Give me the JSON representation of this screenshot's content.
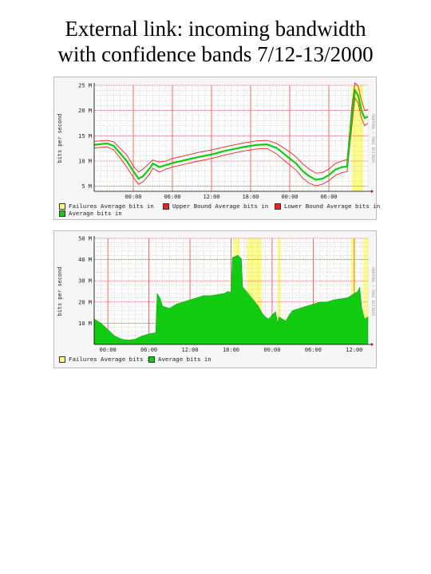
{
  "page": {
    "title_line1": "External link: incoming bandwidth",
    "title_line2": "with confidence bands 7/12-13/2000"
  },
  "colors": {
    "failures": "#ffff88",
    "upper": "#ee2222",
    "lower": "#ee2222",
    "average": "#11cc11",
    "grid_major": "#ff4444",
    "grid_minor": "#c8c8c8"
  },
  "chart_data": [
    {
      "type": "line",
      "ylabel": "bits per second",
      "watermark": "RRDTOOL / TOBI OETIKER",
      "x_ticks": [
        "00:00",
        "06:00",
        "12:00",
        "18:00",
        "00:00",
        "06:00"
      ],
      "y_ticks": [
        "5 M",
        "10 M",
        "15 M",
        "20 M",
        "25 M"
      ],
      "ylim": [
        4,
        25
      ],
      "x_unit": "hours from 18:00 on 7/11",
      "xlim": [
        0,
        42
      ],
      "legend": [
        {
          "label": "Failures Average bits in",
          "color": "#ffff88"
        },
        {
          "label": "Upper Bound Average bits in",
          "color": "#ee2222"
        },
        {
          "label": "Lower Bound Average bits in",
          "color": "#ee2222"
        },
        {
          "label": "Average bits in",
          "color": "#11cc11"
        }
      ],
      "failures": [
        [
          39.5,
          41.3
        ]
      ],
      "series": [
        {
          "name": "Average bits in",
          "points": [
            [
              0,
              13.2
            ],
            [
              2,
              13.5
            ],
            [
              3,
              13.0
            ],
            [
              4,
              11.5
            ],
            [
              5,
              10.0
            ],
            [
              6,
              8.0
            ],
            [
              6.8,
              6.5
            ],
            [
              7.5,
              7.0
            ],
            [
              8.5,
              8.5
            ],
            [
              9,
              9.5
            ],
            [
              10,
              8.8
            ],
            [
              11,
              9.2
            ],
            [
              12,
              9.6
            ],
            [
              14,
              10.2
            ],
            [
              16,
              10.8
            ],
            [
              18,
              11.3
            ],
            [
              20,
              12.0
            ],
            [
              21.5,
              12.4
            ],
            [
              23,
              12.8
            ],
            [
              25,
              13.2
            ],
            [
              26.5,
              13.3
            ],
            [
              28,
              12.6
            ],
            [
              30,
              10.5
            ],
            [
              31,
              9.5
            ],
            [
              32,
              8.0
            ],
            [
              33,
              7.0
            ],
            [
              34,
              6.3
            ],
            [
              35,
              6.5
            ],
            [
              36,
              7.2
            ],
            [
              37,
              8.3
            ],
            [
              38,
              8.8
            ],
            [
              38.8,
              8.9
            ],
            [
              39.1,
              13
            ],
            [
              39.5,
              18.5
            ],
            [
              40,
              24.0
            ],
            [
              40.5,
              23
            ],
            [
              41,
              20.0
            ],
            [
              41.5,
              18.5
            ],
            [
              42,
              18.8
            ]
          ]
        },
        {
          "name": "Upper Bound Average bits in",
          "points": [
            [
              0,
              13.9
            ],
            [
              2,
              14.1
            ],
            [
              3,
              13.8
            ],
            [
              4,
              12.5
            ],
            [
              5,
              11.2
            ],
            [
              6,
              9.0
            ],
            [
              6.8,
              7.8
            ],
            [
              7.5,
              8.4
            ],
            [
              8.5,
              9.6
            ],
            [
              9,
              10.2
            ],
            [
              10,
              9.8
            ],
            [
              11,
              10.0
            ],
            [
              12,
              10.5
            ],
            [
              14,
              11.1
            ],
            [
              16,
              11.7
            ],
            [
              18,
              12.2
            ],
            [
              20,
              12.8
            ],
            [
              21.5,
              13.2
            ],
            [
              23,
              13.6
            ],
            [
              25,
              14.0
            ],
            [
              26.5,
              14.1
            ],
            [
              28,
              13.5
            ],
            [
              30,
              11.8
            ],
            [
              31,
              10.8
            ],
            [
              32,
              9.4
            ],
            [
              33,
              8.4
            ],
            [
              34,
              7.6
            ],
            [
              35,
              7.7
            ],
            [
              36,
              8.4
            ],
            [
              37,
              9.5
            ],
            [
              38,
              10.0
            ],
            [
              38.8,
              10.3
            ],
            [
              39.1,
              14.5
            ],
            [
              39.5,
              20.5
            ],
            [
              40,
              25.5
            ],
            [
              40.5,
              24.8
            ],
            [
              41,
              22.0
            ],
            [
              41.5,
              20.0
            ],
            [
              42,
              20.2
            ]
          ]
        },
        {
          "name": "Lower Bound Average bits in",
          "points": [
            [
              0,
              12.6
            ],
            [
              2,
              12.8
            ],
            [
              3,
              12.2
            ],
            [
              4,
              10.6
            ],
            [
              5,
              8.8
            ],
            [
              6,
              6.8
            ],
            [
              6.8,
              5.4
            ],
            [
              7.5,
              5.9
            ],
            [
              8.5,
              7.4
            ],
            [
              9,
              8.6
            ],
            [
              10,
              7.8
            ],
            [
              11,
              8.4
            ],
            [
              12,
              8.8
            ],
            [
              14,
              9.4
            ],
            [
              16,
              10.0
            ],
            [
              18,
              10.5
            ],
            [
              20,
              11.2
            ],
            [
              21.5,
              11.6
            ],
            [
              23,
              12.0
            ],
            [
              25,
              12.4
            ],
            [
              26.5,
              12.5
            ],
            [
              28,
              11.4
            ],
            [
              30,
              9.2
            ],
            [
              31,
              8.2
            ],
            [
              32,
              6.6
            ],
            [
              33,
              5.6
            ],
            [
              34,
              5.1
            ],
            [
              35,
              5.4
            ],
            [
              36,
              6.1
            ],
            [
              37,
              7.2
            ],
            [
              38,
              7.7
            ],
            [
              38.8,
              7.9
            ],
            [
              39.1,
              11.5
            ],
            [
              39.5,
              16.5
            ],
            [
              40,
              22.5
            ],
            [
              40.5,
              21.5
            ],
            [
              41,
              18.5
            ],
            [
              41.5,
              17.0
            ],
            [
              42,
              17.5
            ]
          ]
        }
      ]
    },
    {
      "type": "area",
      "ylabel": "bits per second",
      "watermark": "RRDTOOL / TOBI OETIKER",
      "x_ticks": [
        "00:00",
        "06:00",
        "12:00",
        "18:00",
        "00:00",
        "06:00",
        "12:00"
      ],
      "y_ticks": [
        "10 M",
        "20 M",
        "30 M",
        "40 M",
        "50 M"
      ],
      "ylim": [
        0,
        50
      ],
      "x_unit": "hours from 22:00 on 7/11",
      "xlim": [
        0,
        40
      ],
      "legend": [
        {
          "label": "Failures Average bits in",
          "color": "#ffff88"
        },
        {
          "label": "Average bits in",
          "color": "#11cc11"
        }
      ],
      "failures": [
        [
          20.3,
          21.3
        ],
        [
          22.3,
          24.5
        ],
        [
          26.8,
          27.3
        ],
        [
          37.5,
          38.2
        ],
        [
          39.3,
          40.0
        ]
      ],
      "series": [
        {
          "name": "Average bits in",
          "points": [
            [
              0,
              12
            ],
            [
              0.5,
              11
            ],
            [
              1,
              10
            ],
            [
              2,
              7
            ],
            [
              3,
              4
            ],
            [
              4,
              2.5
            ],
            [
              5,
              2
            ],
            [
              6,
              2.5
            ],
            [
              7,
              4
            ],
            [
              8,
              5
            ],
            [
              9,
              5.5
            ],
            [
              9.2,
              24
            ],
            [
              9.6,
              22
            ],
            [
              10,
              18
            ],
            [
              11,
              17
            ],
            [
              12,
              19
            ],
            [
              13,
              20
            ],
            [
              14,
              21
            ],
            [
              15,
              22
            ],
            [
              16,
              23
            ],
            [
              17,
              23
            ],
            [
              18,
              23.5
            ],
            [
              19,
              24
            ],
            [
              19.5,
              25
            ],
            [
              20,
              24.5
            ],
            [
              20.2,
              41
            ],
            [
              21,
              42
            ],
            [
              21.5,
              40.5
            ],
            [
              21.7,
              27
            ],
            [
              22,
              26
            ],
            [
              22.5,
              24
            ],
            [
              23,
              22
            ],
            [
              23.5,
              20
            ],
            [
              24,
              18
            ],
            [
              24.5,
              15
            ],
            [
              25,
              13
            ],
            [
              25.5,
              12
            ],
            [
              26,
              14
            ],
            [
              26.5,
              15.5
            ],
            [
              26.8,
              10
            ],
            [
              27,
              13
            ],
            [
              28,
              11
            ],
            [
              28.5,
              14
            ],
            [
              29,
              16
            ],
            [
              30,
              17
            ],
            [
              31,
              18
            ],
            [
              32,
              19
            ],
            [
              33,
              20
            ],
            [
              34,
              20
            ],
            [
              35,
              21
            ],
            [
              36,
              21.5
            ],
            [
              37,
              22
            ],
            [
              37.5,
              23
            ],
            [
              38,
              24
            ],
            [
              38.5,
              25
            ],
            [
              38.8,
              27
            ],
            [
              39.1,
              17
            ],
            [
              39.5,
              12
            ],
            [
              40,
              13
            ]
          ]
        }
      ]
    }
  ]
}
